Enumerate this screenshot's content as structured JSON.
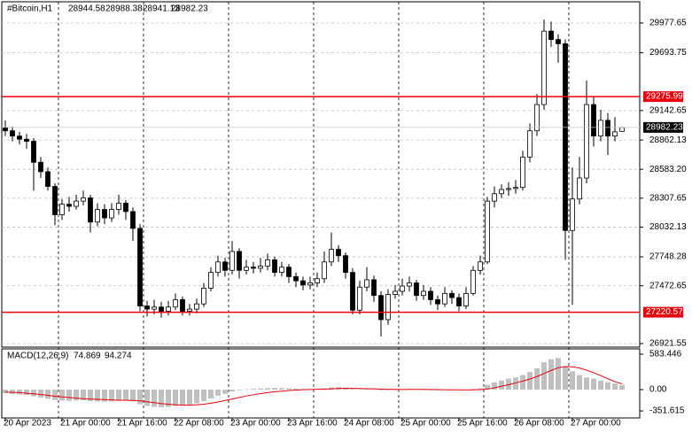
{
  "chart_data": {
    "type": "candlestick",
    "title": "#Bitcoin,H1",
    "categories": [
      "20 Apr 2023",
      null,
      null,
      null,
      null,
      null,
      null,
      null,
      "21 Apr 00:00",
      null,
      null,
      null,
      null,
      null,
      null,
      null,
      "21 Apr 16:00",
      null,
      null,
      null,
      null,
      null,
      null,
      null,
      "22 Apr 08:00",
      null,
      null,
      null,
      null,
      null,
      null,
      null,
      "23 Apr 00:00",
      null,
      null,
      null,
      null,
      null,
      null,
      null,
      "23 Apr 16:00",
      null,
      null,
      null,
      null,
      null,
      null,
      null,
      "24 Apr 08:00",
      null,
      null,
      null,
      null,
      null,
      null,
      null,
      "25 Apr 00:00",
      null,
      null,
      null,
      null,
      null,
      null,
      null,
      "25 Apr 16:00",
      null,
      null,
      null,
      null,
      null,
      null,
      null,
      "26 Apr 08:00",
      null,
      null,
      null,
      null,
      null,
      null,
      null,
      "27 Apr 00:00",
      null,
      null,
      null,
      null,
      null,
      null,
      null
    ],
    "open": [
      28980,
      28950,
      28900,
      28870,
      28850,
      28650,
      28560,
      28420,
      28150,
      28250,
      28230,
      28280,
      28310,
      28080,
      28200,
      28120,
      28200,
      28260,
      28180,
      28020,
      27280,
      27250,
      27270,
      27230,
      27270,
      27340,
      27230,
      27250,
      27300,
      27450,
      27600,
      27700,
      27620,
      27800,
      27620,
      27650,
      27640,
      27660,
      27720,
      27600,
      27650,
      27560,
      27520,
      27480,
      27500,
      27540,
      27700,
      27820,
      27760,
      27600,
      27240,
      27460,
      27530,
      27380,
      27150,
      27390,
      27420,
      27470,
      27500,
      27380,
      27420,
      27340,
      27300,
      27400,
      27360,
      27280,
      27400,
      27620,
      27700,
      28280,
      28350,
      28390,
      28400,
      28410,
      28700,
      28950,
      29200,
      29900,
      29820,
      29780,
      28000,
      28300,
      28500,
      29200,
      28900,
      29050,
      28900,
      28944.58
    ],
    "high": [
      29050,
      28990,
      28940,
      28920,
      28880,
      28700,
      28600,
      28450,
      28300,
      28320,
      28340,
      28380,
      28340,
      28260,
      28250,
      28260,
      28340,
      28290,
      28220,
      28060,
      27330,
      27340,
      27320,
      27330,
      27400,
      27370,
      27300,
      27350,
      27500,
      27650,
      27760,
      27740,
      27900,
      27830,
      27720,
      27700,
      27740,
      27780,
      27750,
      27700,
      27680,
      27600,
      27560,
      27560,
      27600,
      27800,
      27980,
      27860,
      27790,
      27640,
      27520,
      27650,
      27570,
      27420,
      27440,
      27480,
      27540,
      27560,
      27530,
      27480,
      27460,
      27380,
      27460,
      27430,
      27400,
      27460,
      27660,
      27760,
      28320,
      28420,
      28440,
      28460,
      28480,
      28760,
      29020,
      29300,
      30010,
      29990,
      29870,
      29820,
      28600,
      28700,
      29430,
      29280,
      29150,
      29120,
      29080,
      28988.38
    ],
    "low": [
      28900,
      28850,
      28820,
      28780,
      28380,
      28500,
      28380,
      28050,
      28100,
      28180,
      28200,
      28240,
      27980,
      28040,
      28060,
      28080,
      28150,
      28100,
      27900,
      27230,
      27180,
      27200,
      27170,
      27190,
      27240,
      27190,
      27190,
      27210,
      27270,
      27420,
      27560,
      27560,
      27580,
      27540,
      27580,
      27590,
      27600,
      27620,
      27560,
      27560,
      27500,
      27460,
      27430,
      27440,
      27460,
      27500,
      27660,
      27700,
      27540,
      27200,
      27200,
      27420,
      27320,
      26990,
      27100,
      27350,
      27380,
      27420,
      27330,
      27340,
      27290,
      27240,
      27270,
      27300,
      27230,
      27250,
      27380,
      27580,
      27680,
      28220,
      28310,
      28330,
      28350,
      28380,
      28650,
      28900,
      29150,
      29750,
      29600,
      27720,
      27290,
      28250,
      28450,
      28800,
      28850,
      28720,
      28850,
      28941.13
    ],
    "close": [
      28950,
      28900,
      28870,
      28850,
      28650,
      28560,
      28420,
      28150,
      28250,
      28230,
      28280,
      28310,
      28080,
      28200,
      28120,
      28200,
      28260,
      28180,
      28020,
      27280,
      27250,
      27270,
      27230,
      27270,
      27340,
      27230,
      27250,
      27300,
      27450,
      27600,
      27700,
      27620,
      27800,
      27620,
      27650,
      27640,
      27660,
      27720,
      27600,
      27650,
      27560,
      27520,
      27480,
      27500,
      27540,
      27700,
      27820,
      27760,
      27600,
      27240,
      27460,
      27530,
      27380,
      27150,
      27390,
      27420,
      27470,
      27500,
      27380,
      27420,
      27340,
      27300,
      27400,
      27360,
      27280,
      27400,
      27620,
      27700,
      28280,
      28350,
      28390,
      28400,
      28410,
      28700,
      28950,
      29200,
      29900,
      29820,
      29780,
      28000,
      28300,
      28500,
      29200,
      28900,
      29050,
      28900,
      28940,
      28982.23
    ],
    "up_color": "#ffffff",
    "down_color": "#000000",
    "ylim": [
      26888,
      30180
    ],
    "yticks": [
      29977.65,
      29693.75,
      29142.65,
      28862.13,
      {
        "value": 28583.2,
        "label": "28583.20"
      },
      28307.65,
      28032.13,
      27748.28,
      27472.65,
      26921.55
    ],
    "grid": true,
    "hlines": [
      {
        "value": 29275.99,
        "color": "#e8000b"
      },
      {
        "value": 27220.57,
        "color": "#e8000b"
      }
    ],
    "macd": {
      "title": "MACD(12,26,9)",
      "bar_color": "#c0c0c0",
      "line_color": "#e8000b",
      "main": [
        -60,
        -70,
        -80,
        -90,
        -110,
        -130,
        -150,
        -170,
        -180,
        -185,
        -180,
        -175,
        -190,
        -195,
        -200,
        -195,
        -185,
        -180,
        -190,
        -240,
        -270,
        -285,
        -290,
        -285,
        -270,
        -260,
        -245,
        -225,
        -190,
        -145,
        -100,
        -70,
        -30,
        -10,
        5,
        15,
        20,
        25,
        30,
        25,
        20,
        15,
        10,
        8,
        10,
        20,
        35,
        40,
        30,
        10,
        5,
        10,
        5,
        -10,
        -5,
        0,
        5,
        10,
        5,
        0,
        -5,
        -10,
        -5,
        -5,
        -10,
        -5,
        10,
        20,
        80,
        120,
        150,
        180,
        200,
        240,
        290,
        350,
        450,
        500,
        520,
        380,
        300,
        240,
        200,
        180,
        150,
        120,
        100,
        74.869
      ],
      "signal": [
        -40,
        -45,
        -50,
        -60,
        -70,
        -80,
        -95,
        -110,
        -120,
        -130,
        -140,
        -150,
        -155,
        -160,
        -165,
        -170,
        -175,
        -175,
        -178,
        -185,
        -200,
        -215,
        -230,
        -240,
        -250,
        -255,
        -255,
        -250,
        -240,
        -225,
        -205,
        -180,
        -155,
        -130,
        -105,
        -85,
        -65,
        -50,
        -35,
        -25,
        -15,
        -8,
        -2,
        2,
        5,
        8,
        12,
        18,
        22,
        20,
        18,
        15,
        12,
        8,
        5,
        3,
        2,
        3,
        4,
        3,
        2,
        0,
        -2,
        -3,
        -4,
        -5,
        -3,
        0,
        10,
        30,
        55,
        80,
        110,
        140,
        175,
        215,
        265,
        315,
        360,
        380,
        375,
        355,
        320,
        280,
        230,
        180,
        130,
        94.274
      ],
      "ylim": [
        -467,
        671
      ],
      "yticks": [
        583.446,
        {
          "value": 0,
          "label": "0.00"
        },
        -351.615
      ]
    }
  }
}
